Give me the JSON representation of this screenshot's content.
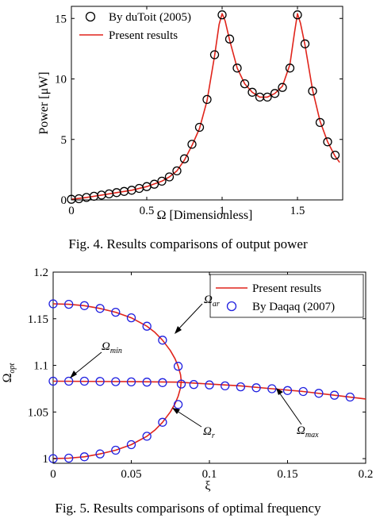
{
  "chart_data": [
    {
      "type": "line",
      "caption": "Fig. 4. Results comparisons of output power",
      "xlabel": "Ω [Dimensionless]",
      "ylabel": "Power [μW]",
      "xlim": [
        0,
        1.8
      ],
      "ylim": [
        0,
        16
      ],
      "xticks": [
        0,
        0.5,
        1,
        1.5
      ],
      "xtick_labels": [
        "0",
        "0.5",
        "1",
        "1.5"
      ],
      "yticks": [
        0,
        5,
        10,
        15
      ],
      "ytick_labels": [
        "0",
        "5",
        "10",
        "15"
      ],
      "legend_position": "top-left",
      "series": [
        {
          "name": "By duToit (2005)",
          "style": "markers",
          "marker": "circle-open",
          "color": "#000000",
          "x": [
            0.0,
            0.05,
            0.1,
            0.15,
            0.2,
            0.25,
            0.3,
            0.35,
            0.4,
            0.45,
            0.5,
            0.55,
            0.6,
            0.65,
            0.7,
            0.75,
            0.8,
            0.85,
            0.9,
            0.95,
            1.0,
            1.05,
            1.1,
            1.15,
            1.2,
            1.25,
            1.3,
            1.35,
            1.4,
            1.45,
            1.5,
            1.55,
            1.6,
            1.65,
            1.7,
            1.75
          ],
          "y": [
            0.05,
            0.1,
            0.2,
            0.3,
            0.4,
            0.5,
            0.6,
            0.7,
            0.8,
            0.95,
            1.1,
            1.3,
            1.55,
            1.9,
            2.4,
            3.4,
            4.6,
            6.0,
            8.3,
            12.0,
            15.3,
            13.3,
            10.9,
            9.6,
            8.9,
            8.5,
            8.5,
            8.8,
            9.3,
            10.9,
            15.3,
            12.9,
            9.0,
            6.4,
            4.8,
            3.7
          ]
        },
        {
          "name": "Present results",
          "style": "line",
          "color": "#e0241b",
          "x": [
            0.0,
            0.1,
            0.2,
            0.3,
            0.4,
            0.5,
            0.6,
            0.65,
            0.7,
            0.75,
            0.8,
            0.85,
            0.9,
            0.95,
            0.98,
            1.0,
            1.02,
            1.05,
            1.1,
            1.15,
            1.2,
            1.25,
            1.3,
            1.35,
            1.4,
            1.45,
            1.48,
            1.5,
            1.52,
            1.55,
            1.6,
            1.65,
            1.7,
            1.75,
            1.78
          ],
          "y": [
            0.05,
            0.2,
            0.4,
            0.6,
            0.8,
            1.1,
            1.55,
            1.9,
            2.4,
            3.3,
            4.5,
            5.9,
            8.2,
            11.9,
            14.5,
            15.4,
            14.8,
            13.2,
            10.9,
            9.6,
            8.9,
            8.5,
            8.5,
            8.8,
            9.4,
            11.2,
            13.8,
            15.4,
            14.6,
            12.8,
            9.1,
            6.5,
            4.8,
            3.6,
            3.1
          ]
        }
      ]
    },
    {
      "type": "line",
      "caption": "Fig. 5. Results comparisons of optimal frequency",
      "xlabel": "ξ",
      "ylabel": "Ω",
      "ylabel_sub": "opt",
      "xlim": [
        0,
        0.2
      ],
      "ylim": [
        0.995,
        1.2
      ],
      "xticks": [
        0,
        0.05,
        0.1,
        0.15,
        0.2
      ],
      "xtick_labels": [
        "0",
        "0.05",
        "0.1",
        "0.15",
        "0.2"
      ],
      "yticks": [
        1,
        1.05,
        1.1,
        1.15,
        1.2
      ],
      "ytick_labels": [
        "1",
        "1.05",
        "1.1",
        "1.15",
        "1.2"
      ],
      "legend_position": "top-right",
      "series": [
        {
          "name": "Present results",
          "style": "line",
          "color": "#e0241b",
          "branches": [
            {
              "x": [
                0.0,
                0.01,
                0.02,
                0.03,
                0.04,
                0.05,
                0.06,
                0.065,
                0.07,
                0.075,
                0.078,
                0.08,
                0.0815,
                0.082
              ],
              "y": [
                1.166,
                1.1655,
                1.164,
                1.161,
                1.157,
                1.151,
                1.142,
                1.1355,
                1.127,
                1.116,
                1.107,
                1.099,
                1.09,
                1.083
              ]
            },
            {
              "x": [
                0.0,
                0.01,
                0.02,
                0.03,
                0.04,
                0.05,
                0.06,
                0.065,
                0.07,
                0.075,
                0.078,
                0.08,
                0.0815,
                0.082
              ],
              "y": [
                1.0,
                1.0005,
                1.002,
                1.005,
                1.009,
                1.015,
                1.024,
                1.0305,
                1.039,
                1.05,
                1.059,
                1.067,
                1.076,
                1.083
              ]
            },
            {
              "x": [
                0.0,
                0.05,
                0.08,
                0.1,
                0.12,
                0.14,
                0.16,
                0.18,
                0.2
              ],
              "y": [
                1.083,
                1.0825,
                1.082,
                1.08,
                1.078,
                1.075,
                1.072,
                1.068,
                1.064
              ]
            }
          ]
        },
        {
          "name": "By Daqaq (2007)",
          "style": "markers",
          "marker": "circle-open",
          "color": "#2020e0",
          "x": [
            0.0,
            0.01,
            0.02,
            0.03,
            0.04,
            0.05,
            0.06,
            0.07,
            0.08,
            0.0,
            0.01,
            0.02,
            0.03,
            0.04,
            0.05,
            0.06,
            0.07,
            0.08,
            0.0,
            0.01,
            0.02,
            0.03,
            0.04,
            0.05,
            0.06,
            0.07,
            0.082,
            0.09,
            0.1,
            0.11,
            0.12,
            0.13,
            0.14,
            0.15,
            0.16,
            0.17,
            0.18,
            0.19
          ],
          "y": [
            1.166,
            1.1655,
            1.164,
            1.161,
            1.157,
            1.151,
            1.142,
            1.127,
            1.099,
            1.0,
            1.0005,
            1.002,
            1.005,
            1.009,
            1.015,
            1.024,
            1.039,
            1.058,
            1.083,
            1.083,
            1.083,
            1.0828,
            1.0825,
            1.0823,
            1.082,
            1.0815,
            1.08,
            1.0795,
            1.079,
            1.078,
            1.077,
            1.076,
            1.075,
            1.073,
            1.072,
            1.07,
            1.068,
            1.066
          ]
        }
      ],
      "annotations": [
        {
          "text": "Ω",
          "sub": "ar"
        },
        {
          "text": "Ω",
          "sub": "min"
        },
        {
          "text": "Ω",
          "sub": "r"
        },
        {
          "text": "Ω",
          "sub": "max"
        }
      ]
    }
  ]
}
